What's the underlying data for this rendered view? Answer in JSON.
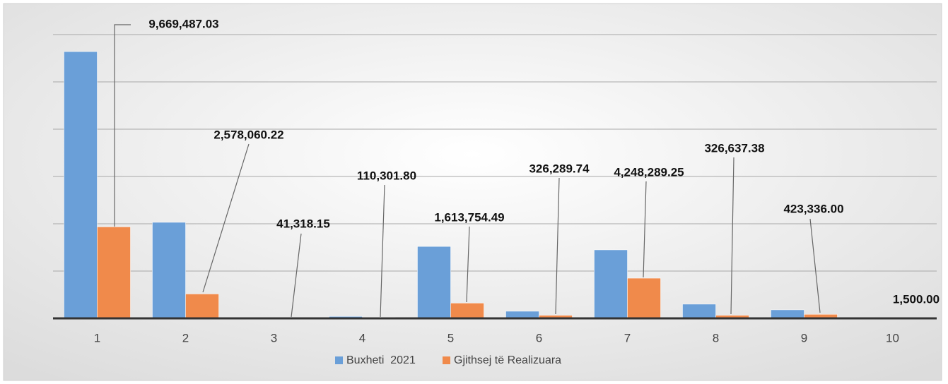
{
  "chart_data": {
    "type": "bar",
    "categories": [
      "1",
      "2",
      "3",
      "4",
      "5",
      "6",
      "7",
      "8",
      "9",
      "10"
    ],
    "series": [
      {
        "name": "Buxheti  2021",
        "color": "#6a9fd8",
        "values": [
          28200000,
          10150000,
          40000,
          200000,
          7600000,
          750000,
          7240000,
          1500000,
          900000,
          10000
        ]
      },
      {
        "name": "Gjithsej të Realizuara",
        "color": "#f08a4b",
        "values": [
          9669487.03,
          2578060.22,
          41318.15,
          110301.8,
          1613754.49,
          326289.74,
          4248289.25,
          326637.38,
          423336.0,
          1500.0
        ],
        "value_labels": [
          "9,669,487.03",
          "2,578,060.22",
          "41,318.15",
          "110,301.80",
          "1,613,754.49",
          "326,289.74",
          "4,248,289.25",
          "326,637.38",
          "423,336.00",
          "1,500.00"
        ]
      }
    ],
    "ylim": [
      0,
      30000000
    ],
    "yticks": [
      0,
      5000000,
      10000000,
      15000000,
      20000000,
      25000000,
      30000000
    ],
    "grid": true,
    "legend": "bottom"
  }
}
